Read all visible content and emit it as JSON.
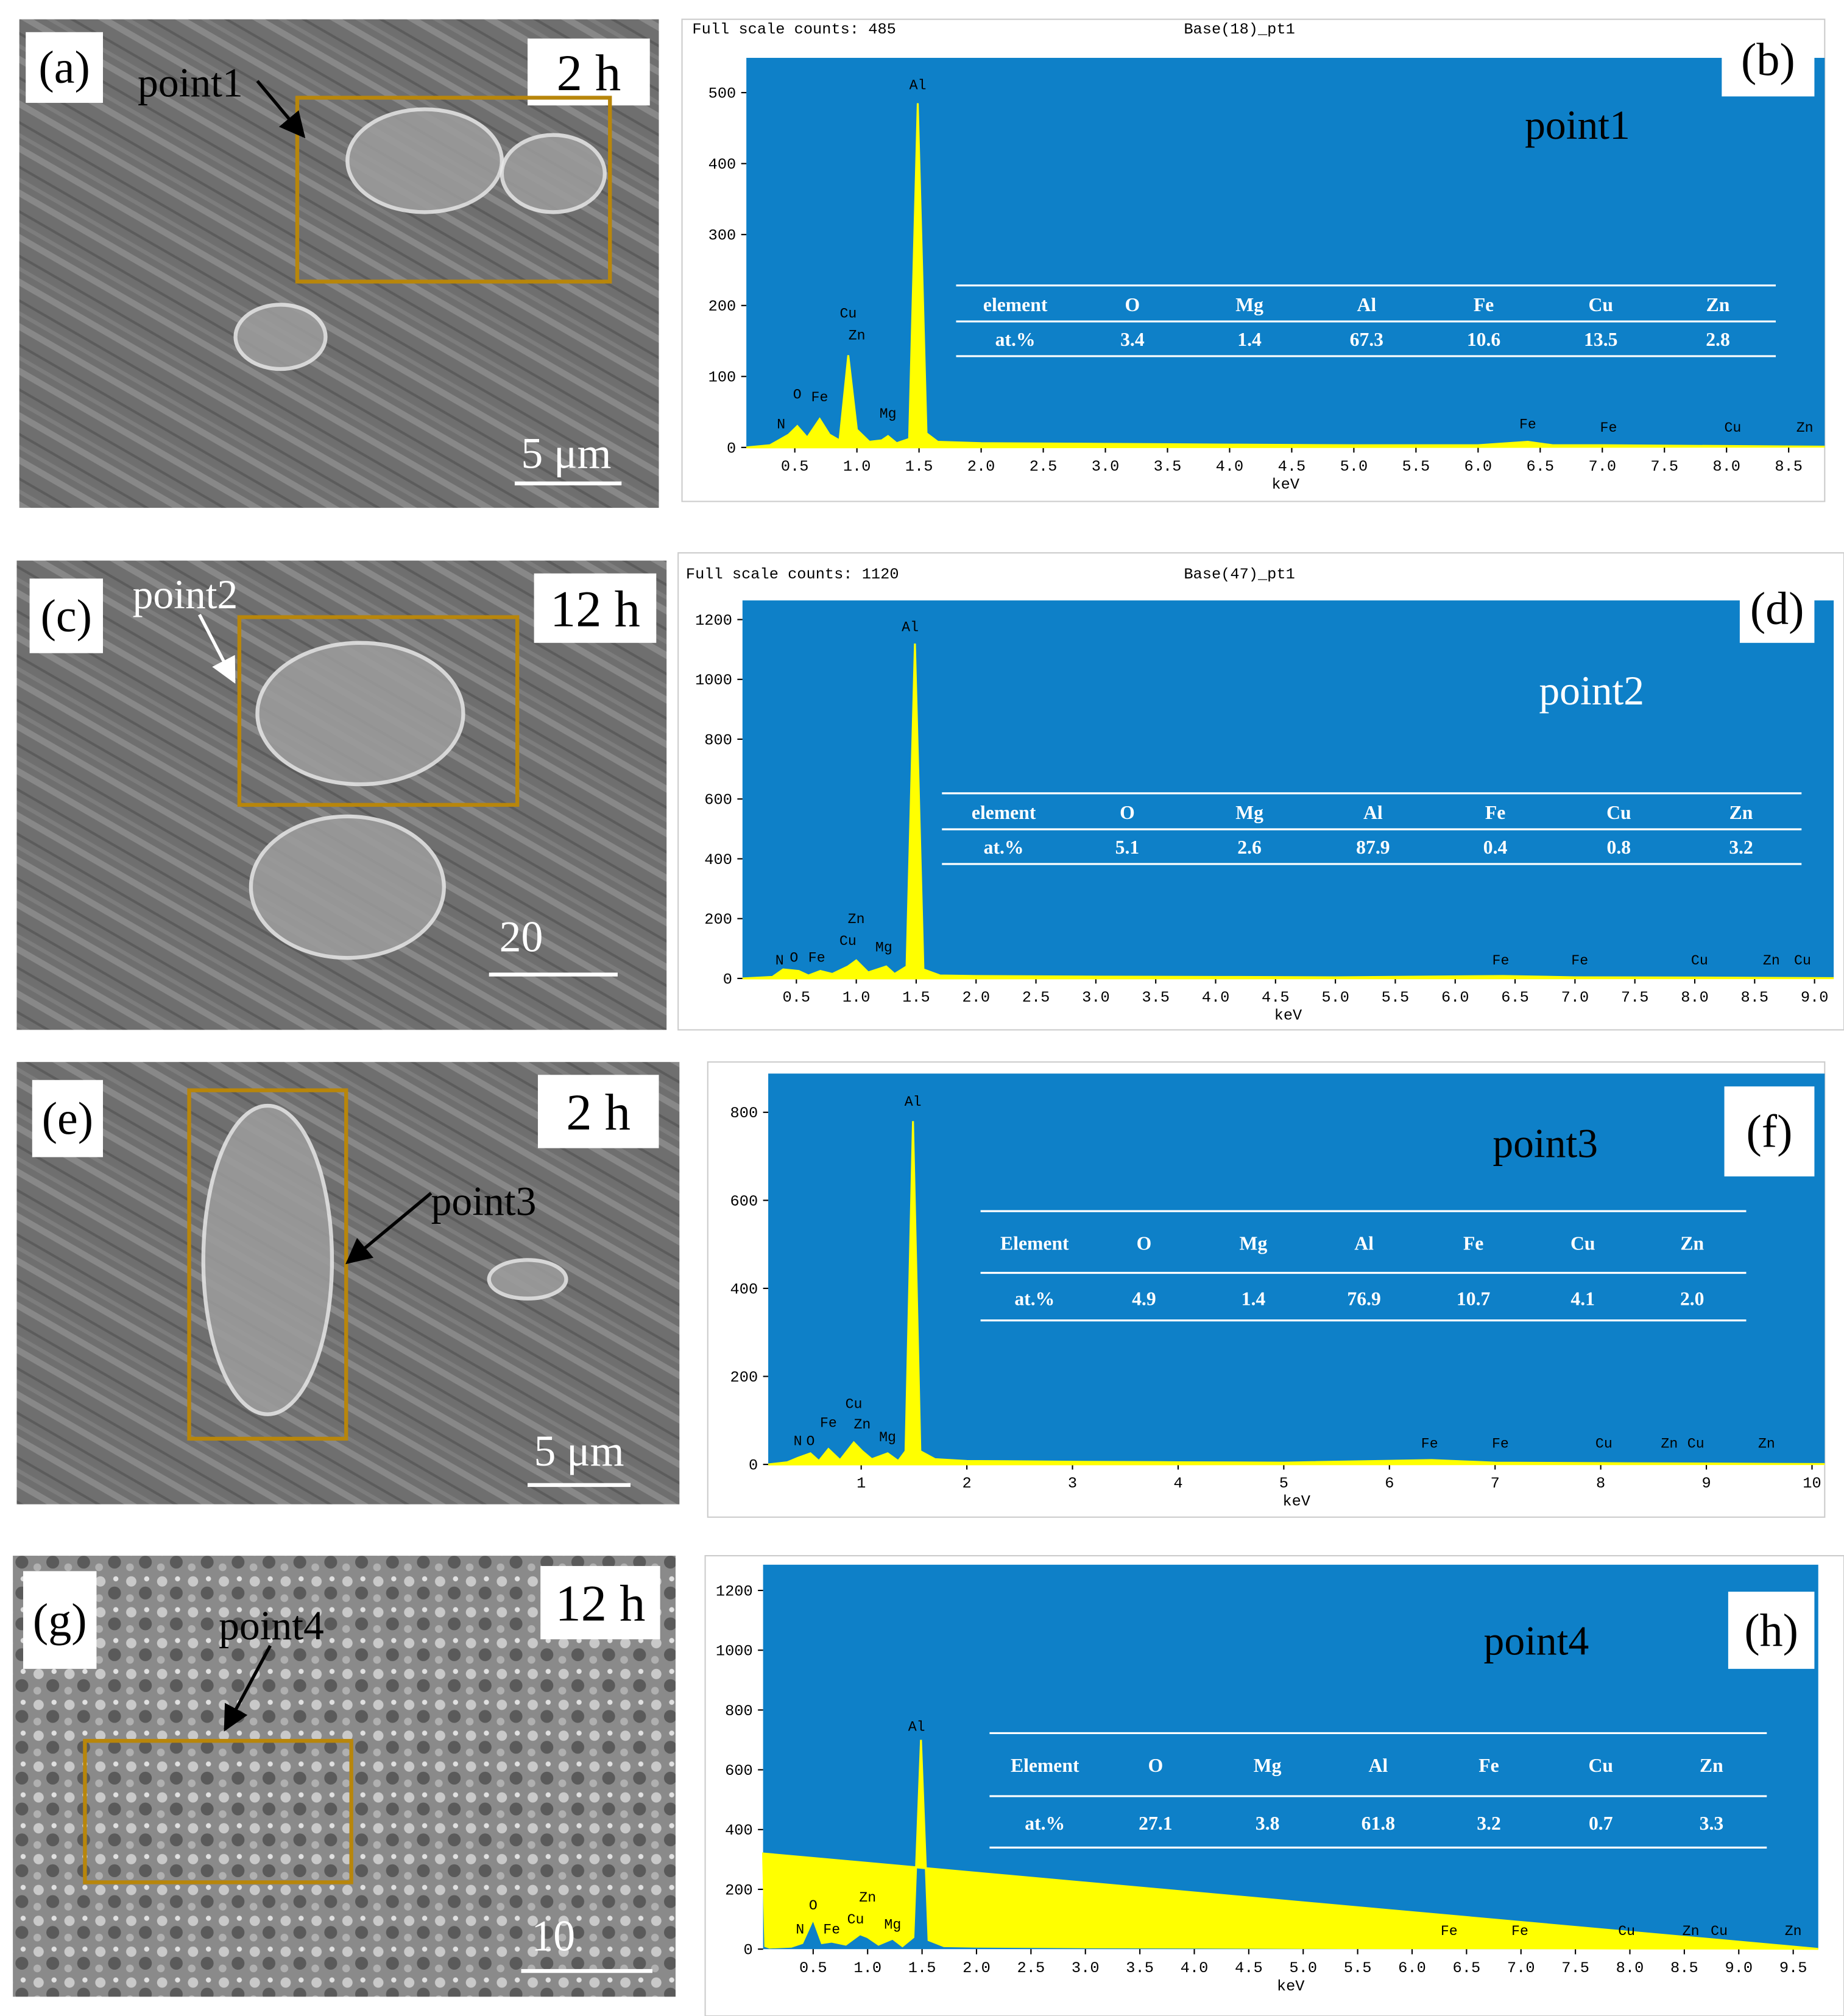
{
  "sem_panels": [
    {
      "label": "(a)",
      "time": "2 h",
      "point": "point1",
      "scale_bar": "5 μm"
    },
    {
      "label": "(c)",
      "time": "12 h",
      "point": "point2",
      "scale_bar": "20"
    },
    {
      "label": "(e)",
      "time": "2 h",
      "point": "point3",
      "scale_bar": "5 μm"
    },
    {
      "label": "(g)",
      "time": "12 h",
      "point": "point4",
      "scale_bar": "10"
    }
  ],
  "chart_data": [
    {
      "type": "spectrum",
      "header": "Full scale counts: 485",
      "sample": "Base(18)_pt1",
      "panel_label": "(b)",
      "point": "point1",
      "point_color": "#000000",
      "x_label": "keV",
      "color": "#ffff00",
      "background": "#0e80c8",
      "xlim": [
        0.11,
        8.79
      ],
      "ylim": [
        0,
        549
      ],
      "xticks": [
        0.5,
        {
          "value": 1,
          "label": "1.0"
        },
        1.5,
        {
          "value": 2,
          "label": "2.0"
        },
        2.5,
        {
          "value": 3,
          "label": "3.0"
        },
        3.5,
        {
          "value": 4,
          "label": "4.0"
        },
        4.5,
        {
          "value": 5,
          "label": "5.0"
        },
        5.5,
        {
          "value": 6,
          "label": "6.0"
        },
        6.5,
        {
          "value": 7,
          "label": "7.0"
        },
        7.5,
        {
          "value": 8,
          "label": "8.0"
        },
        8.5
      ],
      "yticks": [
        0,
        100,
        200,
        300,
        400,
        500
      ],
      "x": [
        0.11,
        0.3,
        0.39,
        0.45,
        0.52,
        0.6,
        0.7,
        0.78,
        0.86,
        0.93,
        1.0,
        1.1,
        1.2,
        1.25,
        1.32,
        1.42,
        1.49,
        1.56,
        1.65,
        2.0,
        3.0,
        4.0,
        5.0,
        6.0,
        6.4,
        6.6,
        7.0,
        8.0,
        8.79
      ],
      "values": [
        0,
        3,
        12,
        18,
        30,
        14,
        40,
        18,
        10,
        130,
        25,
        8,
        10,
        16,
        6,
        12,
        485,
        20,
        8,
        6,
        5,
        4,
        3,
        3,
        8,
        3,
        3,
        2,
        1
      ],
      "peak_labels": [
        {
          "text": "N",
          "x": 0.39,
          "y": 27
        },
        {
          "text": "O",
          "x": 0.52,
          "y": 69
        },
        {
          "text": "Fe",
          "x": 0.7,
          "y": 65
        },
        {
          "text": "Cu",
          "x": 0.93,
          "y": 183
        },
        {
          "text": "Zn",
          "x": 1.0,
          "y": 152
        },
        {
          "text": "Mg",
          "x": 1.25,
          "y": 42
        },
        {
          "text": "Al",
          "x": 1.49,
          "y": 505
        },
        {
          "text": "Fe",
          "x": 6.4,
          "y": 27
        },
        {
          "text": "Fe",
          "x": 7.05,
          "y": 22
        },
        {
          "text": "Cu",
          "x": 8.05,
          "y": 22
        },
        {
          "text": "Zn",
          "x": 8.63,
          "y": 22
        }
      ],
      "table": {
        "header": [
          "element",
          "O",
          "Mg",
          "Al",
          "Fe",
          "Cu",
          "Zn"
        ],
        "rows": [
          [
            "at.%",
            "3.4",
            "1.4",
            "67.3",
            "10.6",
            "13.5",
            "2.8"
          ]
        ]
      }
    },
    {
      "type": "spectrum",
      "header": "Full scale counts: 1120",
      "sample": "Base(47)_pt1",
      "panel_label": "(d)",
      "point": "point2",
      "point_color": "#ffffff",
      "x_label": "keV",
      "color": "#ffff00",
      "background": "#0e80c8",
      "xlim": [
        0.05,
        9.16
      ],
      "ylim": [
        0,
        1264
      ],
      "xticks": [
        0.5,
        {
          "value": 1,
          "label": "1.0"
        },
        1.5,
        {
          "value": 2,
          "label": "2.0"
        },
        2.5,
        {
          "value": 3,
          "label": "3.0"
        },
        3.5,
        {
          "value": 4,
          "label": "4.0"
        },
        4.5,
        {
          "value": 5,
          "label": "5.0"
        },
        5.5,
        {
          "value": 6,
          "label": "6.0"
        },
        6.5,
        {
          "value": 7,
          "label": "7.0"
        },
        7.5,
        {
          "value": 8,
          "label": "8.0"
        },
        8.5,
        {
          "value": 9,
          "label": "9.0"
        }
      ],
      "yticks": [
        0,
        200,
        400,
        600,
        800,
        1000,
        1200
      ],
      "x": [
        0.05,
        0.3,
        0.39,
        0.52,
        0.6,
        0.7,
        0.8,
        0.93,
        1.0,
        1.1,
        1.25,
        1.32,
        1.42,
        1.49,
        1.56,
        1.7,
        2.0,
        3.0,
        4.0,
        5.0,
        6.4,
        7.0,
        8.0,
        9.16
      ],
      "values": [
        0,
        5,
        30,
        25,
        10,
        25,
        15,
        40,
        60,
        20,
        40,
        15,
        40,
        1120,
        30,
        10,
        8,
        6,
        5,
        4,
        8,
        4,
        3,
        1
      ],
      "peak_labels": [
        {
          "text": "N",
          "x": 0.36,
          "y": 47
        },
        {
          "text": "O",
          "x": 0.48,
          "y": 56
        },
        {
          "text": "Fe",
          "x": 0.67,
          "y": 56
        },
        {
          "text": "Cu",
          "x": 0.93,
          "y": 112
        },
        {
          "text": "Zn",
          "x": 1.0,
          "y": 185
        },
        {
          "text": "Mg",
          "x": 1.23,
          "y": 90
        },
        {
          "text": "Al",
          "x": 1.45,
          "y": 1161
        },
        {
          "text": "Fe",
          "x": 6.38,
          "y": 47
        },
        {
          "text": "Fe",
          "x": 7.04,
          "y": 47
        },
        {
          "text": "Cu",
          "x": 8.04,
          "y": 47
        },
        {
          "text": "Zn",
          "x": 8.64,
          "y": 47
        },
        {
          "text": "Cu",
          "x": 8.9,
          "y": 47
        }
      ],
      "table": {
        "header": [
          "element",
          "O",
          "Mg",
          "Al",
          "Fe",
          "Cu",
          "Zn"
        ],
        "rows": [
          [
            "at.%",
            "5.1",
            "2.6",
            "87.9",
            "0.4",
            "0.8",
            "3.2"
          ]
        ]
      }
    },
    {
      "type": "spectrum",
      "panel_label": "(f)",
      "point": "point3",
      "point_color": "#000000",
      "x_label": "keV",
      "color": "#ffff00",
      "background": "#0e80c8",
      "xlim": [
        0.12,
        10.12
      ],
      "ylim": [
        0,
        888
      ],
      "xticks": [
        1,
        2,
        3,
        4,
        5,
        6,
        7,
        8,
        9,
        10
      ],
      "yticks": [
        0,
        200,
        400,
        600,
        800
      ],
      "x": [
        0.12,
        0.3,
        0.4,
        0.52,
        0.6,
        0.69,
        0.8,
        0.93,
        1.01,
        1.1,
        1.25,
        1.35,
        1.42,
        1.49,
        1.56,
        1.7,
        2.0,
        3.0,
        4.0,
        5.0,
        6.4,
        7.0,
        8.0,
        9.0,
        10.12
      ],
      "values": [
        0,
        5,
        15,
        25,
        8,
        35,
        10,
        50,
        30,
        12,
        25,
        8,
        30,
        780,
        30,
        12,
        8,
        6,
        5,
        4,
        10,
        4,
        3,
        2,
        1
      ],
      "peak_labels": [
        {
          "text": "N",
          "x": 0.4,
          "y": 44
        },
        {
          "text": "O",
          "x": 0.52,
          "y": 44
        },
        {
          "text": "Fe",
          "x": 0.69,
          "y": 85
        },
        {
          "text": "Cu",
          "x": 0.93,
          "y": 128
        },
        {
          "text": "Zn",
          "x": 1.01,
          "y": 82
        },
        {
          "text": "Mg",
          "x": 1.25,
          "y": 53
        },
        {
          "text": "Al",
          "x": 1.49,
          "y": 815
        },
        {
          "text": "Fe",
          "x": 6.38,
          "y": 38
        },
        {
          "text": "Fe",
          "x": 7.05,
          "y": 38
        },
        {
          "text": "Cu",
          "x": 8.03,
          "y": 38
        },
        {
          "text": "Zn",
          "x": 8.65,
          "y": 38
        },
        {
          "text": "Cu",
          "x": 8.9,
          "y": 38
        },
        {
          "text": "Zn",
          "x": 9.57,
          "y": 38
        }
      ],
      "table": {
        "header": [
          "Element",
          "O",
          "Mg",
          "Al",
          "Fe",
          "Cu",
          "Zn"
        ],
        "rows": [
          [
            "at.%",
            "4.9",
            "1.4",
            "76.9",
            "10.7",
            "4.1",
            "2.0"
          ]
        ]
      }
    },
    {
      "type": "spectrum",
      "panel_label": "(h)",
      "point": "point4",
      "point_color": "#000000",
      "x_label": "keV",
      "color": "#ffff00",
      "background": "#0e80c8",
      "xlim": [
        0.04,
        9.73
      ],
      "ylim": [
        0,
        1286
      ],
      "xticks": [
        0.5,
        {
          "value": 1,
          "label": "1.0"
        },
        1.5,
        {
          "value": 2,
          "label": "2.0"
        },
        2.5,
        {
          "value": 3,
          "label": "3.0"
        },
        3.5,
        {
          "value": 4,
          "label": "4.0"
        },
        4.5,
        {
          "value": 5,
          "label": "5.0"
        },
        5.5,
        {
          "value": 6,
          "label": "6.0"
        },
        6.5,
        {
          "value": 7,
          "label": "7.0"
        },
        7.5,
        {
          "value": 8,
          "label": "8.0"
        },
        8.5,
        {
          "value": 9,
          "label": "9.0"
        },
        9.5
      ],
      "yticks": [
        0,
        200,
        400,
        600,
        800,
        1000,
        1200
      ],
      "x": [
        0.04,
        0.06,
        0.1,
        0.3,
        0.4,
        0.5,
        0.58,
        0.67,
        0.8,
        0.93,
        1.0,
        1.1,
        1.23,
        1.32,
        1.42,
        1.49,
        1.56,
        1.7,
        2.0,
        3.0,
        4.0,
        5.0,
        6.0,
        7.0,
        8.0,
        9.0,
        9.73
      ],
      "values": [
        320,
        10,
        5,
        8,
        20,
        100,
        20,
        25,
        15,
        50,
        40,
        15,
        35,
        10,
        40,
        700,
        30,
        10,
        8,
        6,
        5,
        4,
        3,
        3,
        2,
        2,
        1
      ],
      "peak_labels": [
        {
          "text": "N",
          "x": 0.38,
          "y": 52
        },
        {
          "text": "O",
          "x": 0.5,
          "y": 133
        },
        {
          "text": "Fe",
          "x": 0.67,
          "y": 52
        },
        {
          "text": "Cu",
          "x": 0.89,
          "y": 86
        },
        {
          "text": "Zn",
          "x": 1.0,
          "y": 159
        },
        {
          "text": "Mg",
          "x": 1.23,
          "y": 69
        },
        {
          "text": "Al",
          "x": 1.45,
          "y": 731
        },
        {
          "text": "Fe",
          "x": 6.34,
          "y": 47
        },
        {
          "text": "Fe",
          "x": 6.99,
          "y": 47
        },
        {
          "text": "Cu",
          "x": 7.97,
          "y": 47
        },
        {
          "text": "Zn",
          "x": 8.56,
          "y": 47
        },
        {
          "text": "Cu",
          "x": 8.82,
          "y": 47
        },
        {
          "text": "Zn",
          "x": 9.5,
          "y": 47
        }
      ],
      "table": {
        "header": [
          "Element",
          "O",
          "Mg",
          "Al",
          "Fe",
          "Cu",
          "Zn"
        ],
        "rows": [
          [
            "at.%",
            "27.1",
            "3.8",
            "61.8",
            "3.2",
            "0.7",
            "3.3"
          ]
        ]
      }
    }
  ]
}
